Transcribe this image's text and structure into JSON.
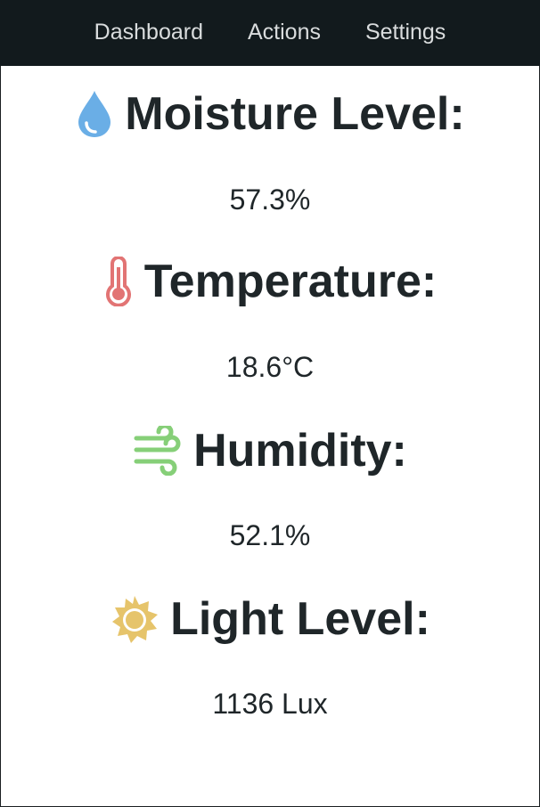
{
  "nav": {
    "items": [
      {
        "label": "Dashboard"
      },
      {
        "label": "Actions"
      },
      {
        "label": "Settings"
      }
    ]
  },
  "sensors": [
    {
      "label": "Moisture Level:",
      "value": "57.3%",
      "icon": "water-drop-icon",
      "color": "#6aaee6"
    },
    {
      "label": "Temperature:",
      "value": "18.6°C",
      "icon": "thermometer-icon",
      "color": "#e27474"
    },
    {
      "label": "Humidity:",
      "value": "52.1%",
      "icon": "wind-icon",
      "color": "#86cf78"
    },
    {
      "label": "Light Level:",
      "value": "1136 Lux",
      "icon": "sun-icon",
      "color": "#e6c46b"
    }
  ],
  "colors": {
    "navbar_bg": "#121a1d",
    "nav_text": "#d9dcdd",
    "text": "#1f2629"
  }
}
